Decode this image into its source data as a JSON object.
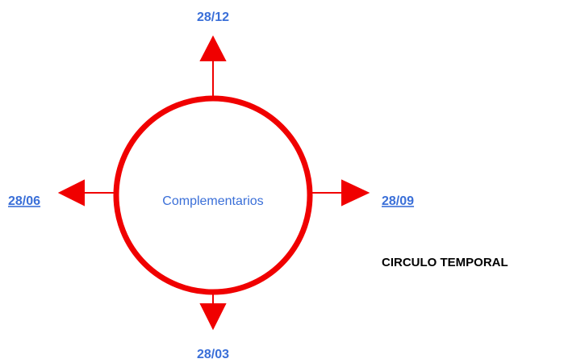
{
  "center_label": "Complementarios",
  "top": "28/12",
  "left": "28/06",
  "right": "28/09",
  "bottom": "28/03",
  "caption": "CIRCULO TEMPORAL"
}
